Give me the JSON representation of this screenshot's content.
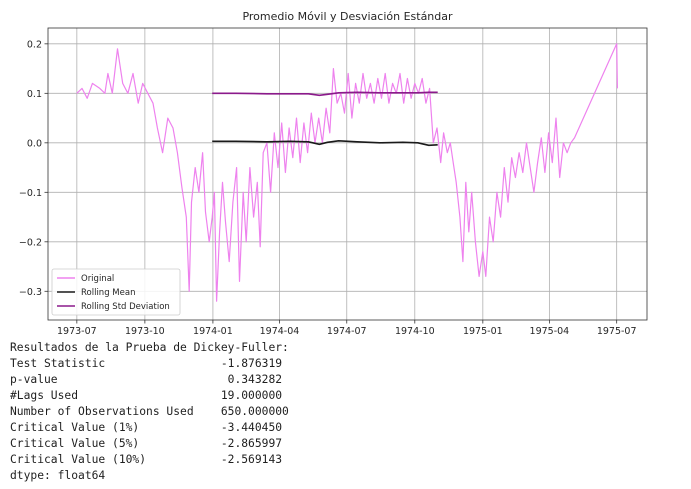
{
  "chart_data": {
    "type": "line",
    "title": "Promedio Móvil y Desviación Estándar",
    "xlabel": "",
    "ylabel": "",
    "x_range": [
      "1973-05-23",
      "1975-08-11"
    ],
    "ylim": [
      -0.358,
      0.232
    ],
    "grid": true,
    "legend_position": "lower-left",
    "x_ticks": [
      "1973-07",
      "1973-10",
      "1974-01",
      "1974-04",
      "1974-07",
      "1974-10",
      "1975-01",
      "1975-04",
      "1975-07"
    ],
    "y_ticks": [
      0.2,
      0.1,
      0.0,
      -0.1,
      -0.2,
      -0.3
    ],
    "y_tick_labels": [
      "0.2",
      "0.1",
      "0.0",
      "−0.1",
      "−0.2",
      "−0.3"
    ],
    "series": [
      {
        "name": "Original",
        "color": "#ee82ee",
        "points": [
          [
            "1973-07-01",
            0.1
          ],
          [
            "1973-07-08",
            0.11
          ],
          [
            "1973-07-15",
            0.09
          ],
          [
            "1973-07-22",
            0.12
          ],
          [
            "1973-08-01",
            0.11
          ],
          [
            "1973-08-08",
            0.1
          ],
          [
            "1973-08-12",
            0.14
          ],
          [
            "1973-08-18",
            0.1
          ],
          [
            "1973-08-25",
            0.19
          ],
          [
            "1973-09-01",
            0.12
          ],
          [
            "1973-09-08",
            0.1
          ],
          [
            "1973-09-15",
            0.14
          ],
          [
            "1973-09-22",
            0.08
          ],
          [
            "1973-09-28",
            0.12
          ],
          [
            "1973-10-05",
            0.1
          ],
          [
            "1973-10-12",
            0.08
          ],
          [
            "1973-10-18",
            0.03
          ],
          [
            "1973-10-25",
            -0.02
          ],
          [
            "1973-11-01",
            0.05
          ],
          [
            "1973-11-08",
            0.03
          ],
          [
            "1973-11-14",
            -0.02
          ],
          [
            "1973-11-20",
            -0.09
          ],
          [
            "1973-11-26",
            -0.15
          ],
          [
            "1973-11-30",
            -0.3
          ],
          [
            "1973-12-03",
            -0.12
          ],
          [
            "1973-12-08",
            -0.05
          ],
          [
            "1973-12-13",
            -0.1
          ],
          [
            "1973-12-18",
            -0.02
          ],
          [
            "1973-12-22",
            -0.14
          ],
          [
            "1973-12-27",
            -0.2
          ],
          [
            "1973-12-31",
            -0.15
          ],
          [
            "1974-01-03",
            -0.1
          ],
          [
            "1974-01-06",
            -0.32
          ],
          [
            "1974-01-10",
            -0.18
          ],
          [
            "1974-01-14",
            -0.08
          ],
          [
            "1974-01-18",
            -0.16
          ],
          [
            "1974-01-23",
            -0.24
          ],
          [
            "1974-01-28",
            -0.12
          ],
          [
            "1974-02-02",
            -0.05
          ],
          [
            "1974-02-06",
            -0.28
          ],
          [
            "1974-02-11",
            -0.1
          ],
          [
            "1974-02-15",
            -0.2
          ],
          [
            "1974-02-20",
            -0.05
          ],
          [
            "1974-02-25",
            -0.15
          ],
          [
            "1974-03-02",
            -0.08
          ],
          [
            "1974-03-06",
            -0.21
          ],
          [
            "1974-03-10",
            -0.02
          ],
          [
            "1974-03-15",
            0.0
          ],
          [
            "1974-03-20",
            -0.1
          ],
          [
            "1974-03-25",
            0.02
          ],
          [
            "1974-03-30",
            -0.05
          ],
          [
            "1974-04-04",
            0.04
          ],
          [
            "1974-04-09",
            -0.06
          ],
          [
            "1974-04-14",
            0.03
          ],
          [
            "1974-04-19",
            -0.03
          ],
          [
            "1974-04-24",
            0.05
          ],
          [
            "1974-04-29",
            -0.04
          ],
          [
            "1974-05-04",
            0.04
          ],
          [
            "1974-05-09",
            -0.02
          ],
          [
            "1974-05-14",
            0.06
          ],
          [
            "1974-05-19",
            0.0
          ],
          [
            "1974-05-24",
            0.05
          ],
          [
            "1974-05-29",
            0.0
          ],
          [
            "1974-06-03",
            0.07
          ],
          [
            "1974-06-08",
            0.02
          ],
          [
            "1974-06-13",
            0.15
          ],
          [
            "1974-06-18",
            0.08
          ],
          [
            "1974-06-23",
            0.1
          ],
          [
            "1974-06-28",
            0.06
          ],
          [
            "1974-07-03",
            0.14
          ],
          [
            "1974-07-08",
            0.05
          ],
          [
            "1974-07-13",
            0.12
          ],
          [
            "1974-07-18",
            0.08
          ],
          [
            "1974-07-23",
            0.14
          ],
          [
            "1974-07-28",
            0.09
          ],
          [
            "1974-08-02",
            0.12
          ],
          [
            "1974-08-07",
            0.08
          ],
          [
            "1974-08-12",
            0.13
          ],
          [
            "1974-08-17",
            0.09
          ],
          [
            "1974-08-22",
            0.14
          ],
          [
            "1974-08-27",
            0.08
          ],
          [
            "1974-09-01",
            0.12
          ],
          [
            "1974-09-06",
            0.1
          ],
          [
            "1974-09-11",
            0.14
          ],
          [
            "1974-09-16",
            0.08
          ],
          [
            "1974-09-21",
            0.13
          ],
          [
            "1974-09-26",
            0.09
          ],
          [
            "1974-10-01",
            0.12
          ],
          [
            "1974-10-06",
            0.1
          ],
          [
            "1974-10-11",
            0.13
          ],
          [
            "1974-10-16",
            0.08
          ],
          [
            "1974-10-21",
            0.11
          ],
          [
            "1974-10-26",
            0.0
          ],
          [
            "1974-10-31",
            0.03
          ],
          [
            "1974-11-05",
            -0.04
          ],
          [
            "1974-11-09",
            0.02
          ],
          [
            "1974-11-14",
            -0.02
          ],
          [
            "1974-11-18",
            0.0
          ],
          [
            "1974-11-22",
            -0.04
          ],
          [
            "1974-11-26",
            -0.08
          ],
          [
            "1974-12-01",
            -0.15
          ],
          [
            "1974-12-05",
            -0.24
          ],
          [
            "1974-12-09",
            -0.08
          ],
          [
            "1974-12-13",
            -0.18
          ],
          [
            "1974-12-17",
            -0.1
          ],
          [
            "1974-12-22",
            -0.2
          ],
          [
            "1974-12-27",
            -0.27
          ],
          [
            "1975-01-01",
            -0.22
          ],
          [
            "1975-01-05",
            -0.27
          ],
          [
            "1975-01-10",
            -0.15
          ],
          [
            "1975-01-15",
            -0.2
          ],
          [
            "1975-01-20",
            -0.1
          ],
          [
            "1975-01-25",
            -0.15
          ],
          [
            "1975-01-30",
            -0.05
          ],
          [
            "1975-02-04",
            -0.12
          ],
          [
            "1975-02-09",
            -0.03
          ],
          [
            "1975-02-14",
            -0.07
          ],
          [
            "1975-02-19",
            -0.02
          ],
          [
            "1975-02-24",
            -0.06
          ],
          [
            "1975-03-01",
            0.0
          ],
          [
            "1975-03-06",
            -0.05
          ],
          [
            "1975-03-11",
            -0.1
          ],
          [
            "1975-03-16",
            -0.04
          ],
          [
            "1975-03-21",
            0.01
          ],
          [
            "1975-03-26",
            -0.06
          ],
          [
            "1975-03-31",
            0.02
          ],
          [
            "1975-04-05",
            -0.04
          ],
          [
            "1975-04-10",
            0.05
          ],
          [
            "1975-04-15",
            -0.07
          ],
          [
            "1975-04-20",
            0.0
          ],
          [
            "1975-04-25",
            -0.02
          ],
          [
            "1975-04-30",
            0.0
          ],
          [
            "1975-05-05",
            0.01
          ],
          [
            "1975-07-01",
            0.2
          ],
          [
            "1975-07-02",
            0.11
          ]
        ]
      },
      {
        "name": "Rolling Mean",
        "color": "#1a1a1a",
        "points": [
          [
            "1973-12-31",
            0.003
          ],
          [
            "1974-02-01",
            0.003
          ],
          [
            "1974-03-15",
            0.002
          ],
          [
            "1974-04-15",
            0.003
          ],
          [
            "1974-05-10",
            0.002
          ],
          [
            "1974-05-25",
            -0.003
          ],
          [
            "1974-06-05",
            0.001
          ],
          [
            "1974-06-20",
            0.004
          ],
          [
            "1974-07-15",
            0.002
          ],
          [
            "1974-08-15",
            0.0
          ],
          [
            "1974-09-15",
            0.001
          ],
          [
            "1974-10-05",
            0.0
          ],
          [
            "1974-10-20",
            -0.005
          ],
          [
            "1974-11-01",
            -0.004
          ]
        ]
      },
      {
        "name": "Rolling Std Deviation",
        "color": "#8b1a8b",
        "points": [
          [
            "1973-12-31",
            0.1
          ],
          [
            "1974-02-01",
            0.1
          ],
          [
            "1974-03-15",
            0.099
          ],
          [
            "1974-04-15",
            0.099
          ],
          [
            "1974-05-10",
            0.099
          ],
          [
            "1974-05-25",
            0.096
          ],
          [
            "1974-06-05",
            0.098
          ],
          [
            "1974-06-20",
            0.101
          ],
          [
            "1974-07-15",
            0.102
          ],
          [
            "1974-08-15",
            0.101
          ],
          [
            "1974-09-15",
            0.101
          ],
          [
            "1974-10-05",
            0.101
          ],
          [
            "1974-10-20",
            0.102
          ],
          [
            "1974-11-01",
            0.102
          ]
        ]
      }
    ]
  },
  "output": {
    "lines": [
      "Resultados de la Prueba de Dickey-Fuller:",
      "Test Statistic                 -1.876319",
      "p-value                         0.343282",
      "#Lags Used                     19.000000",
      "Number of Observations Used    650.000000",
      "Critical Value (1%)            -3.440450",
      "Critical Value (5%)            -2.865997",
      "Critical Value (10%)           -2.569143",
      "dtype: float64"
    ]
  }
}
